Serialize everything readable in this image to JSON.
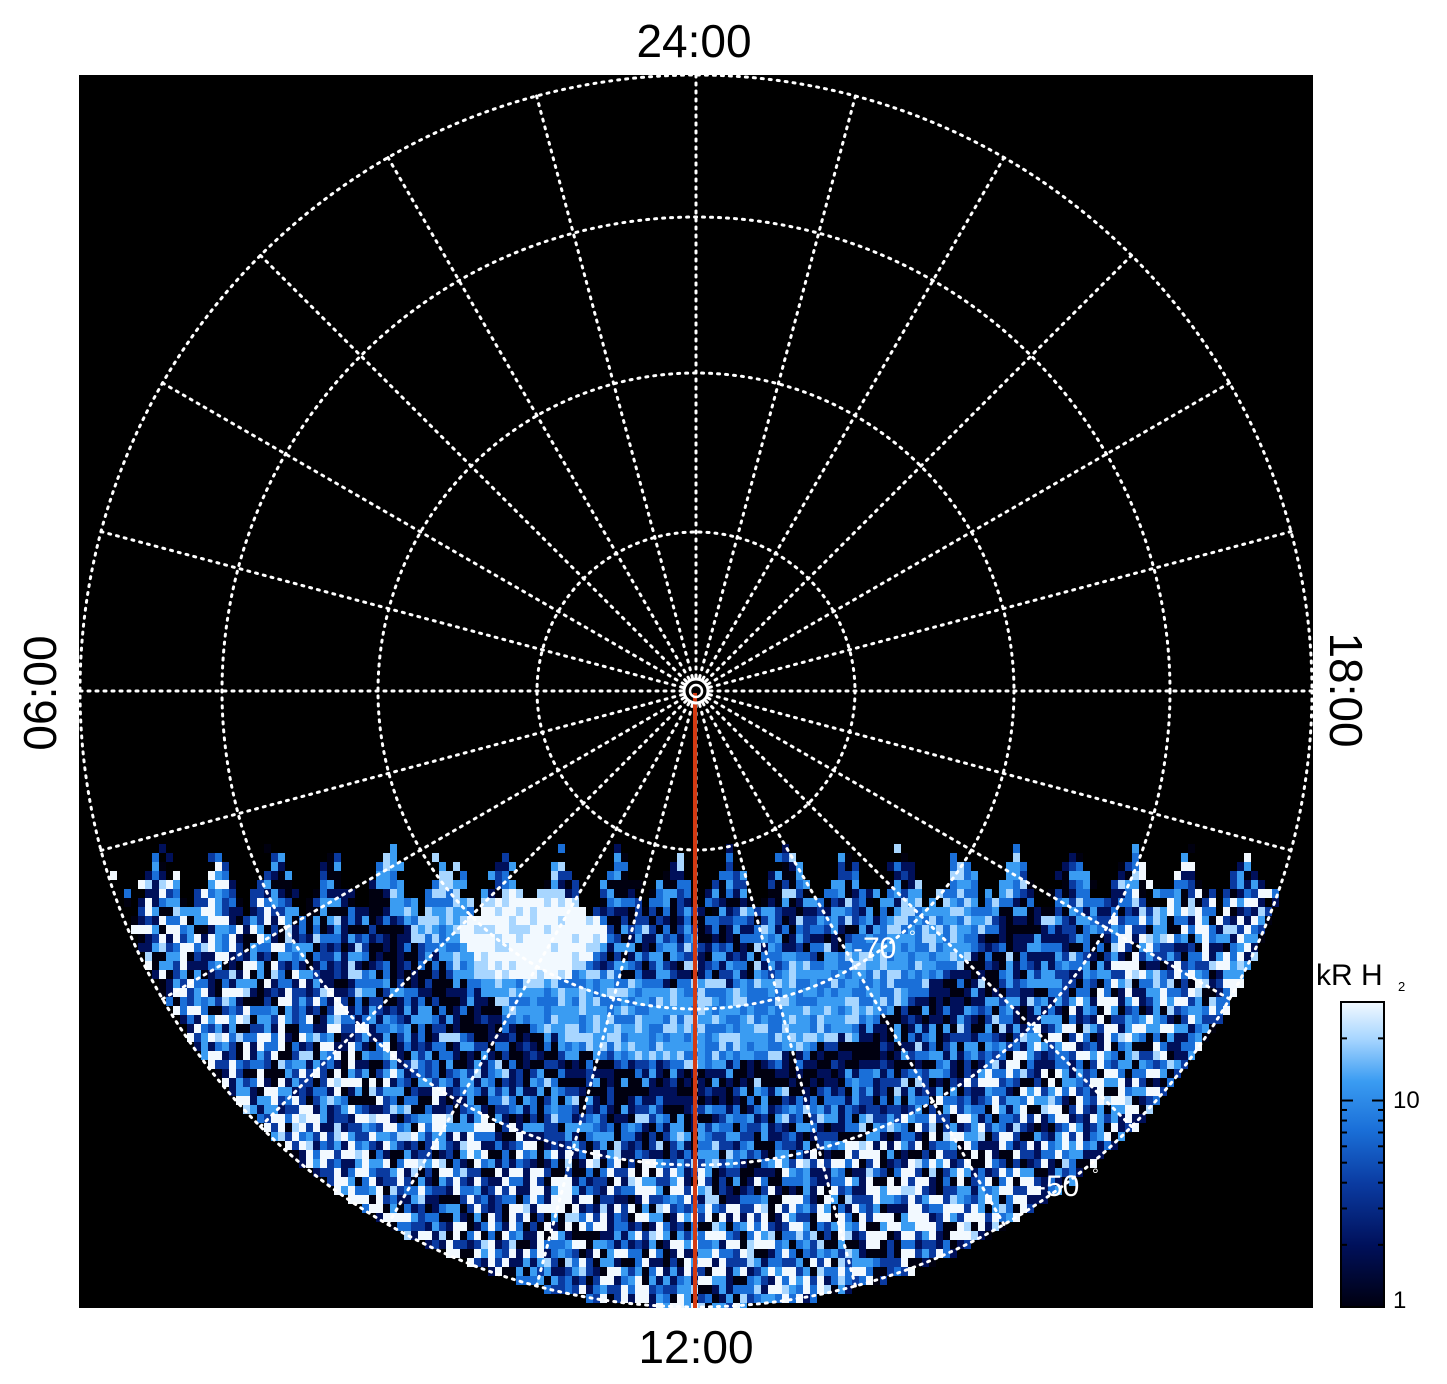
{
  "chart_data": {
    "type": "heatmap",
    "projection": "polar",
    "local_time_labels": {
      "top": "24:00",
      "bottom": "12:00",
      "left": "06:00",
      "right": "18:00"
    },
    "latitude_labels": [
      {
        "value": "-70",
        "degree_symbol": "°"
      },
      {
        "value": "-50",
        "degree_symbol": "°"
      }
    ],
    "colorbar": {
      "title": "kR H",
      "title_subscript": "2",
      "scale": "log",
      "range": [
        1,
        30
      ],
      "tick_labels": [
        "10",
        "1"
      ],
      "tick_values": [
        10,
        1
      ]
    },
    "grid": true,
    "background_color": "#000000",
    "grid_color": "#ffffff",
    "meridian_line": {
      "local_time": "12:00",
      "color": "#d43a12"
    },
    "colormap": [
      "#000010",
      "#00105a",
      "#0a3aa0",
      "#1a6fd8",
      "#3a9cf2",
      "#a8d6ff",
      "#f2f9ff"
    ],
    "coverage": {
      "equatorward_latitude": -40,
      "poleward_edge_local_time_start": "07:30",
      "poleward_edge_local_time_end": "16:30"
    },
    "emission_features": [
      {
        "description": "bright arc",
        "latitude": -74,
        "local_time_start": "08:30",
        "local_time_end": "10:30",
        "intensity_kR": 25
      },
      {
        "description": "main oval arc",
        "latitude": -70,
        "local_time_start": "09:00",
        "local_time_end": "15:30",
        "intensity_kR": 8
      }
    ]
  }
}
